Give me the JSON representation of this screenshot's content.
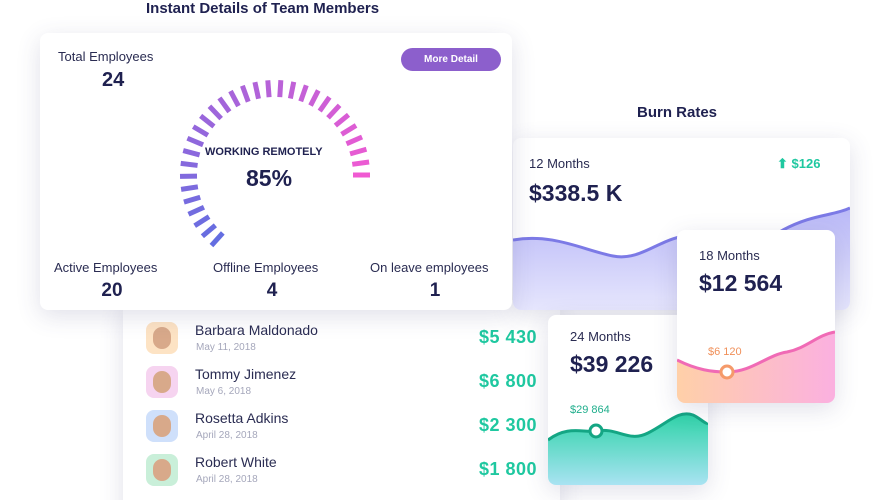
{
  "team": {
    "title": "Instant Details of Team Members",
    "total_label": "Total Employees",
    "total_value": "24",
    "button": "More Detail",
    "gauge_label": "WORKING REMOTELY",
    "gauge_value": "85%",
    "stats": [
      {
        "label": "Active Employees",
        "value": "20"
      },
      {
        "label": "Offline Employees",
        "value": "4"
      },
      {
        "label": "On leave employees",
        "value": "1"
      }
    ]
  },
  "members": [
    {
      "name": "Barbara Maldonado",
      "date": "May 11, 2018",
      "amount": "$5 430"
    },
    {
      "name": "Tommy Jimenez",
      "date": "May 6, 2018",
      "amount": "$6 800"
    },
    {
      "name": "Rosetta Adkins",
      "date": "April 28, 2018",
      "amount": "$2 300"
    },
    {
      "name": "Robert White",
      "date": "April 28, 2018",
      "amount": "$1 800"
    }
  ],
  "burn": {
    "title": "Burn Rates",
    "cards": [
      {
        "period": "12 Months",
        "amount": "$338.5 K",
        "change": "$126"
      },
      {
        "period": "18 Months",
        "amount": "$12 564",
        "point": "$6 120"
      },
      {
        "period": "24 Months",
        "amount": "$39 226",
        "point": "$29 864"
      }
    ]
  }
}
